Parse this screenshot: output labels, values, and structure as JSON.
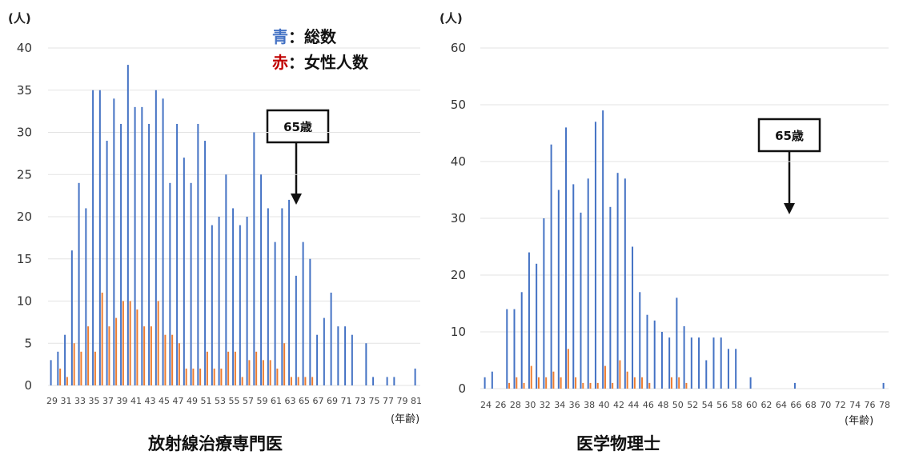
{
  "chart_data": [
    {
      "type": "bar",
      "title": "放射線治療専門医",
      "ylabel": "(人)",
      "xlabel": "(年齢)",
      "ylim": [
        0,
        40
      ],
      "yticks": [
        0,
        5,
        10,
        15,
        20,
        25,
        30,
        35,
        40
      ],
      "grid": true,
      "legend": "top-right",
      "x": [
        29,
        30,
        31,
        32,
        33,
        34,
        35,
        36,
        37,
        38,
        39,
        40,
        41,
        42,
        43,
        44,
        45,
        46,
        47,
        48,
        49,
        50,
        51,
        52,
        53,
        54,
        55,
        56,
        57,
        58,
        59,
        60,
        61,
        62,
        63,
        64,
        65,
        66,
        67,
        68,
        69,
        70,
        71,
        72,
        73,
        74,
        75,
        76,
        77,
        78,
        79,
        80,
        81
      ],
      "xticklabels": [
        "29",
        "31",
        "33",
        "35",
        "37",
        "39",
        "41",
        "43",
        "45",
        "47",
        "49",
        "51",
        "53",
        "55",
        "57",
        "59",
        "61",
        "63",
        "65",
        "67",
        "69",
        "71",
        "73",
        "75",
        "77",
        "79",
        "81"
      ],
      "series": [
        {
          "name": "総数",
          "color": "#4472c4",
          "values": [
            3,
            4,
            6,
            16,
            24,
            21,
            35,
            35,
            29,
            34,
            31,
            38,
            33,
            33,
            31,
            35,
            34,
            24,
            31,
            27,
            24,
            31,
            29,
            19,
            20,
            25,
            21,
            19,
            20,
            30,
            25,
            21,
            17,
            21,
            22,
            13,
            17,
            15,
            6,
            8,
            11,
            7,
            7,
            6,
            0,
            5,
            1,
            0,
            1,
            1,
            0,
            0,
            2
          ]
        },
        {
          "name": "女性人数",
          "color": "#ed7d31",
          "values": [
            0,
            2,
            1,
            5,
            4,
            7,
            4,
            11,
            7,
            8,
            10,
            10,
            9,
            7,
            7,
            10,
            6,
            6,
            5,
            2,
            2,
            2,
            4,
            2,
            2,
            4,
            4,
            1,
            3,
            4,
            3,
            3,
            2,
            5,
            1,
            1,
            1,
            1,
            0,
            0,
            0,
            0,
            0,
            0,
            0,
            0,
            0,
            0,
            0,
            0,
            0,
            0,
            0
          ]
        }
      ],
      "annotation": {
        "label": "65歳",
        "at": 65
      }
    },
    {
      "type": "bar",
      "title": "医学物理士",
      "ylabel": "(人)",
      "xlabel": "(年齢)",
      "ylim": [
        0,
        60
      ],
      "yticks": [
        0,
        10,
        20,
        30,
        40,
        50,
        60
      ],
      "grid": true,
      "x": [
        24,
        25,
        26,
        27,
        28,
        29,
        30,
        31,
        32,
        33,
        34,
        35,
        36,
        37,
        38,
        39,
        40,
        41,
        42,
        43,
        44,
        45,
        46,
        47,
        48,
        49,
        50,
        51,
        52,
        53,
        54,
        55,
        56,
        57,
        58,
        59,
        60,
        61,
        62,
        63,
        64,
        65,
        66,
        67,
        68,
        69,
        70,
        71,
        72,
        73,
        74,
        75,
        76,
        77,
        78
      ],
      "xticklabels": [
        "24",
        "26",
        "28",
        "30",
        "32",
        "34",
        "36",
        "38",
        "40",
        "42",
        "44",
        "46",
        "48",
        "50",
        "52",
        "54",
        "56",
        "58",
        "60",
        "62",
        "64",
        "66",
        "68",
        "70",
        "72",
        "74",
        "76",
        "78"
      ],
      "series": [
        {
          "name": "総数",
          "color": "#4472c4",
          "values": [
            2,
            3,
            0,
            14,
            14,
            17,
            24,
            22,
            30,
            43,
            35,
            46,
            36,
            31,
            37,
            47,
            49,
            32,
            38,
            37,
            25,
            17,
            13,
            12,
            10,
            9,
            16,
            11,
            9,
            9,
            5,
            9,
            9,
            7,
            7,
            0,
            2,
            0,
            0,
            0,
            0,
            0,
            1,
            0,
            0,
            0,
            0,
            0,
            0,
            0,
            0,
            0,
            0,
            0,
            1
          ]
        },
        {
          "name": "女性人数",
          "color": "#ed7d31",
          "values": [
            0,
            0,
            0,
            1,
            2,
            1,
            4,
            2,
            2,
            3,
            2,
            7,
            2,
            1,
            1,
            1,
            4,
            1,
            5,
            3,
            2,
            2,
            1,
            0,
            0,
            2,
            2,
            1,
            0,
            0,
            0,
            0,
            0,
            0,
            0,
            0,
            0,
            0,
            0,
            0,
            0,
            0,
            0,
            0,
            0,
            0,
            0,
            0,
            0,
            0,
            0,
            0,
            0,
            0,
            0
          ]
        }
      ],
      "annotation": {
        "label": "65歳",
        "at": 65
      }
    }
  ],
  "legend": {
    "total_marker": "青",
    "total_sep": "：",
    "total_label": "総数",
    "female_marker": "赤",
    "female_sep": "：",
    "female_label": "女性人数"
  }
}
